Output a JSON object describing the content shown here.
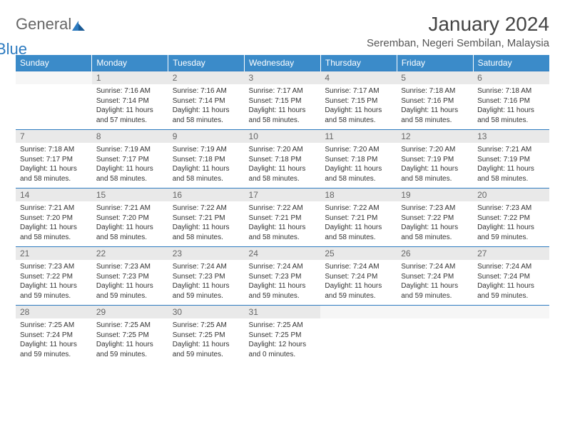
{
  "logo": {
    "part1": "General",
    "part2": "Blue"
  },
  "title": "January 2024",
  "location": "Seremban, Negeri Sembilan, Malaysia",
  "styling": {
    "header_bg": "#3b8bc9",
    "header_text": "#ffffff",
    "daynum_bg": "#e9e9e9",
    "daynum_text": "#666666",
    "rule_color": "#2d7bc0",
    "body_font_size": 10,
    "header_font_size": 12,
    "title_font_size": 28,
    "location_font_size": 15
  },
  "day_headers": [
    "Sunday",
    "Monday",
    "Tuesday",
    "Wednesday",
    "Thursday",
    "Friday",
    "Saturday"
  ],
  "weeks": [
    {
      "nums": [
        "",
        "1",
        "2",
        "3",
        "4",
        "5",
        "6"
      ],
      "cells": [
        null,
        {
          "sunrise": "Sunrise: 7:16 AM",
          "sunset": "Sunset: 7:14 PM",
          "daylight": "Daylight: 11 hours and 57 minutes."
        },
        {
          "sunrise": "Sunrise: 7:16 AM",
          "sunset": "Sunset: 7:14 PM",
          "daylight": "Daylight: 11 hours and 58 minutes."
        },
        {
          "sunrise": "Sunrise: 7:17 AM",
          "sunset": "Sunset: 7:15 PM",
          "daylight": "Daylight: 11 hours and 58 minutes."
        },
        {
          "sunrise": "Sunrise: 7:17 AM",
          "sunset": "Sunset: 7:15 PM",
          "daylight": "Daylight: 11 hours and 58 minutes."
        },
        {
          "sunrise": "Sunrise: 7:18 AM",
          "sunset": "Sunset: 7:16 PM",
          "daylight": "Daylight: 11 hours and 58 minutes."
        },
        {
          "sunrise": "Sunrise: 7:18 AM",
          "sunset": "Sunset: 7:16 PM",
          "daylight": "Daylight: 11 hours and 58 minutes."
        }
      ]
    },
    {
      "nums": [
        "7",
        "8",
        "9",
        "10",
        "11",
        "12",
        "13"
      ],
      "cells": [
        {
          "sunrise": "Sunrise: 7:18 AM",
          "sunset": "Sunset: 7:17 PM",
          "daylight": "Daylight: 11 hours and 58 minutes."
        },
        {
          "sunrise": "Sunrise: 7:19 AM",
          "sunset": "Sunset: 7:17 PM",
          "daylight": "Daylight: 11 hours and 58 minutes."
        },
        {
          "sunrise": "Sunrise: 7:19 AM",
          "sunset": "Sunset: 7:18 PM",
          "daylight": "Daylight: 11 hours and 58 minutes."
        },
        {
          "sunrise": "Sunrise: 7:20 AM",
          "sunset": "Sunset: 7:18 PM",
          "daylight": "Daylight: 11 hours and 58 minutes."
        },
        {
          "sunrise": "Sunrise: 7:20 AM",
          "sunset": "Sunset: 7:18 PM",
          "daylight": "Daylight: 11 hours and 58 minutes."
        },
        {
          "sunrise": "Sunrise: 7:20 AM",
          "sunset": "Sunset: 7:19 PM",
          "daylight": "Daylight: 11 hours and 58 minutes."
        },
        {
          "sunrise": "Sunrise: 7:21 AM",
          "sunset": "Sunset: 7:19 PM",
          "daylight": "Daylight: 11 hours and 58 minutes."
        }
      ]
    },
    {
      "nums": [
        "14",
        "15",
        "16",
        "17",
        "18",
        "19",
        "20"
      ],
      "cells": [
        {
          "sunrise": "Sunrise: 7:21 AM",
          "sunset": "Sunset: 7:20 PM",
          "daylight": "Daylight: 11 hours and 58 minutes."
        },
        {
          "sunrise": "Sunrise: 7:21 AM",
          "sunset": "Sunset: 7:20 PM",
          "daylight": "Daylight: 11 hours and 58 minutes."
        },
        {
          "sunrise": "Sunrise: 7:22 AM",
          "sunset": "Sunset: 7:21 PM",
          "daylight": "Daylight: 11 hours and 58 minutes."
        },
        {
          "sunrise": "Sunrise: 7:22 AM",
          "sunset": "Sunset: 7:21 PM",
          "daylight": "Daylight: 11 hours and 58 minutes."
        },
        {
          "sunrise": "Sunrise: 7:22 AM",
          "sunset": "Sunset: 7:21 PM",
          "daylight": "Daylight: 11 hours and 58 minutes."
        },
        {
          "sunrise": "Sunrise: 7:23 AM",
          "sunset": "Sunset: 7:22 PM",
          "daylight": "Daylight: 11 hours and 58 minutes."
        },
        {
          "sunrise": "Sunrise: 7:23 AM",
          "sunset": "Sunset: 7:22 PM",
          "daylight": "Daylight: 11 hours and 59 minutes."
        }
      ]
    },
    {
      "nums": [
        "21",
        "22",
        "23",
        "24",
        "25",
        "26",
        "27"
      ],
      "cells": [
        {
          "sunrise": "Sunrise: 7:23 AM",
          "sunset": "Sunset: 7:22 PM",
          "daylight": "Daylight: 11 hours and 59 minutes."
        },
        {
          "sunrise": "Sunrise: 7:23 AM",
          "sunset": "Sunset: 7:23 PM",
          "daylight": "Daylight: 11 hours and 59 minutes."
        },
        {
          "sunrise": "Sunrise: 7:24 AM",
          "sunset": "Sunset: 7:23 PM",
          "daylight": "Daylight: 11 hours and 59 minutes."
        },
        {
          "sunrise": "Sunrise: 7:24 AM",
          "sunset": "Sunset: 7:23 PM",
          "daylight": "Daylight: 11 hours and 59 minutes."
        },
        {
          "sunrise": "Sunrise: 7:24 AM",
          "sunset": "Sunset: 7:24 PM",
          "daylight": "Daylight: 11 hours and 59 minutes."
        },
        {
          "sunrise": "Sunrise: 7:24 AM",
          "sunset": "Sunset: 7:24 PM",
          "daylight": "Daylight: 11 hours and 59 minutes."
        },
        {
          "sunrise": "Sunrise: 7:24 AM",
          "sunset": "Sunset: 7:24 PM",
          "daylight": "Daylight: 11 hours and 59 minutes."
        }
      ]
    },
    {
      "nums": [
        "28",
        "29",
        "30",
        "31",
        "",
        "",
        ""
      ],
      "cells": [
        {
          "sunrise": "Sunrise: 7:25 AM",
          "sunset": "Sunset: 7:24 PM",
          "daylight": "Daylight: 11 hours and 59 minutes."
        },
        {
          "sunrise": "Sunrise: 7:25 AM",
          "sunset": "Sunset: 7:25 PM",
          "daylight": "Daylight: 11 hours and 59 minutes."
        },
        {
          "sunrise": "Sunrise: 7:25 AM",
          "sunset": "Sunset: 7:25 PM",
          "daylight": "Daylight: 11 hours and 59 minutes."
        },
        {
          "sunrise": "Sunrise: 7:25 AM",
          "sunset": "Sunset: 7:25 PM",
          "daylight": "Daylight: 12 hours and 0 minutes."
        },
        null,
        null,
        null
      ]
    }
  ]
}
